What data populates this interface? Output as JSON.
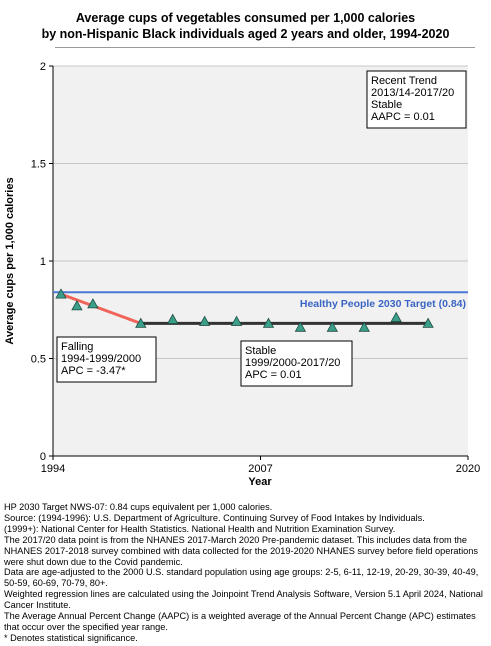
{
  "title_lines": [
    "Average cups of vegetables consumed per 1,000 calories",
    "by non-Hispanic Black individuals aged 2 years and older, 1994-2020"
  ],
  "chart_data": {
    "type": "line",
    "title": "Average cups of vegetables consumed per 1,000 calories by non-Hispanic Black individuals aged 2 years and older, 1994-2020",
    "xlabel": "Year",
    "ylabel": "Average cups per 1,000 calories",
    "xlim": [
      1994,
      2020
    ],
    "ylim": [
      0,
      2
    ],
    "x_ticks": [
      "1994",
      "2007",
      "2020"
    ],
    "y_ticks": [
      "0",
      "0.5",
      "1",
      "1.5",
      "2"
    ],
    "grid": true,
    "series": [
      {
        "x": [
          "1994-1995",
          "1996",
          "1997",
          "1999-2000",
          "2001-2002",
          "2003-2004",
          "2005-2006",
          "2007-2008",
          "2009-2010",
          "2011-2012",
          "2013-2014",
          "2015-2016",
          "2017-2020"
        ],
        "x_mid": [
          1994.5,
          1995.5,
          1996.5,
          1999.5,
          2001.5,
          2003.5,
          2005.5,
          2007.5,
          2009.5,
          2011.5,
          2013.5,
          2015.5,
          2017.5
        ],
        "values": [
          0.83,
          0.77,
          0.78,
          0.68,
          0.7,
          0.69,
          0.69,
          0.68,
          0.66,
          0.66,
          0.66,
          0.71,
          0.68
        ]
      }
    ],
    "trend_segments": [
      {
        "x": [
          1994.5,
          1999.5
        ],
        "y": [
          0.83,
          0.68
        ],
        "color": "#f0645a"
      },
      {
        "x": [
          1999.5,
          2017.5
        ],
        "y": [
          0.68,
          0.68
        ],
        "color": "#333333"
      }
    ],
    "target": {
      "value": 0.84,
      "label": "Healthy People 2030 Target (0.84)",
      "color": "#4a78d6"
    },
    "annotations": [
      {
        "lines": [
          "Recent Trend",
          "2013/14-2017/20",
          "Stable",
          "AAPC =  0.01"
        ]
      },
      {
        "lines": [
          "Falling",
          "1994-1999/2000",
          "APC = -3.47*"
        ]
      },
      {
        "lines": [
          "Stable",
          "1999/2000-2017/20",
          "APC =  0.01"
        ]
      }
    ],
    "marker_color": "#3b9e88"
  },
  "notes": [
    "HP 2030 Target NWS-07: 0.84 cups equivalent per 1,000 calories.",
    "Source: (1994-1996): U.S. Department of Agriculture. Continuing Survey of Food Intakes by Individuals.",
    "(1999+): National Center for Health Statistics. National Health and Nutrition Examination Survey.",
    "The 2017/20 data point is from the NHANES 2017-March 2020 Pre-pandemic dataset. This includes data from the NHANES 2017-2018 survey combined with data collected for the 2019-2020 NHANES survey before field operations were shut down due to the Covid pandemic.",
    "Data are age-adjusted to the 2000 U.S. standard population using age groups: 2-5, 6-11, 12-19, 20-29, 30-39, 40-49, 50-59, 60-69, 70-79, 80+.",
    "Weighted regression lines are calculated using the Joinpoint Trend Analysis Software, Version 5.1 April 2024, National Cancer Institute.",
    "The Average Annual Percent Change (AAPC) is a weighted average of the Annual Percent Change (APC) estimates that occur over the specified year range.",
    "* Denotes statistical significance."
  ]
}
